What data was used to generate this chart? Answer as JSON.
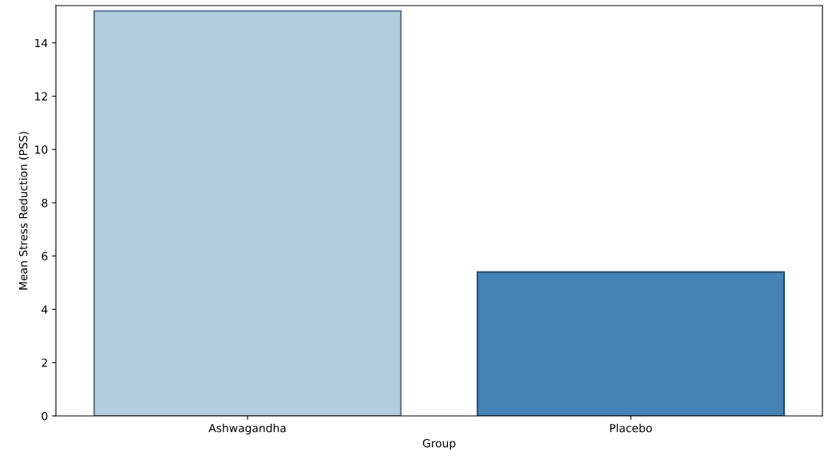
{
  "chart_data": {
    "type": "bar",
    "xlabel": "Group",
    "ylabel": "Mean Stress Reduction (PSS)",
    "categories": [
      "Ashwagandha",
      "Placebo"
    ],
    "series": [
      {
        "values": [
          15.2,
          5.4
        ],
        "colors": [
          "#b3cde0",
          "#4682b4"
        ]
      }
    ],
    "ylim": [
      0,
      15.4
    ],
    "yticks": [
      0,
      2,
      4,
      6,
      8,
      10,
      12,
      14
    ],
    "grid": false,
    "legend": false
  }
}
